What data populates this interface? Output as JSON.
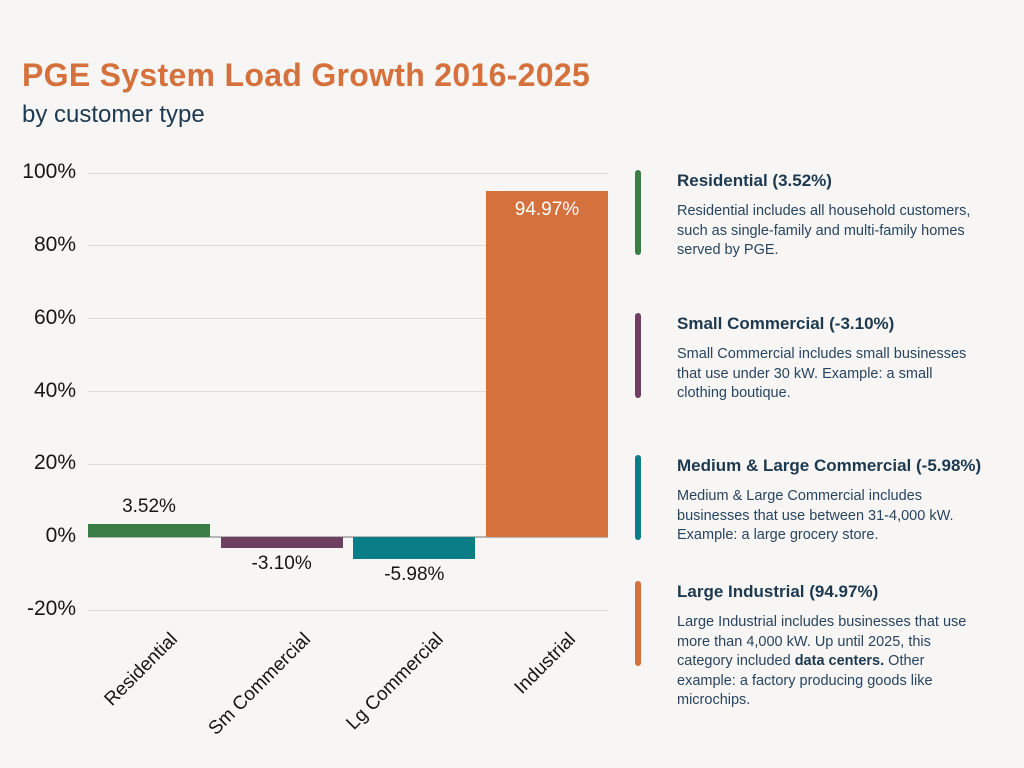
{
  "header": {
    "title": "PGE System Load Growth 2016-2025",
    "subtitle": "by customer type"
  },
  "colors": {
    "background": "#f7f6f4",
    "title_orange": "#d4713c",
    "navy": "#1d3950",
    "body_navy": "#29445f",
    "axis_text": "#161616",
    "gridline": "#dcdcda",
    "zero_line": "#b6b6b4",
    "green": "#3a7d45",
    "plum": "#6e3f60",
    "teal": "#0b7d86",
    "orange": "#d4713c"
  },
  "chart_data": {
    "type": "bar",
    "title": "PGE System Load Growth 2016-2025",
    "subtitle": "by customer type",
    "categories": [
      "Residential",
      "Sm Commercial",
      "Lg Commercial",
      "Industrial"
    ],
    "values": [
      3.52,
      -3.1,
      -5.98,
      94.97
    ],
    "value_labels": [
      "3.52%",
      "-3.10%",
      "-5.98%",
      "94.97%"
    ],
    "bar_color_keys": [
      "green",
      "plum",
      "teal",
      "orange"
    ],
    "xlabel": "",
    "ylabel": "",
    "ylim": [
      -20,
      100
    ],
    "yticks": [
      {
        "value": 100,
        "label": "100%"
      },
      {
        "value": 80,
        "label": "80%"
      },
      {
        "value": 60,
        "label": "60%"
      },
      {
        "value": 40,
        "label": "40%"
      },
      {
        "value": 20,
        "label": "20%"
      },
      {
        "value": 0,
        "label": "0%"
      },
      {
        "value": -20,
        "label": "-20%"
      }
    ],
    "grid": true,
    "legend_position": "right"
  },
  "legend": {
    "items": [
      {
        "color_key": "green",
        "title": "Residential (3.52%)",
        "body": [
          {
            "text": "Residential includes all household customers, such as single-family and multi-family homes served by PGE.",
            "bold": false
          }
        ]
      },
      {
        "color_key": "plum",
        "title": "Small Commercial (-3.10%)",
        "body": [
          {
            "text": "Small Commercial includes small businesses that use under 30 kW. Example: a small clothing boutique.",
            "bold": false
          }
        ]
      },
      {
        "color_key": "teal",
        "title": "Medium & Large Commercial (-5.98%)",
        "body": [
          {
            "text": "Medium & Large Commercial includes businesses that use between 31-4,000 kW. Example: a large grocery store.",
            "bold": false
          }
        ]
      },
      {
        "color_key": "orange",
        "title": "Large Industrial (94.97%)",
        "body": [
          {
            "text": "Large Industrial includes businesses that use more than 4,000 kW. Up until 2025, this category included ",
            "bold": false
          },
          {
            "text": "data centers.",
            "bold": true
          },
          {
            "text": " Other example: a factory producing goods like microchips.",
            "bold": false
          }
        ]
      }
    ]
  }
}
